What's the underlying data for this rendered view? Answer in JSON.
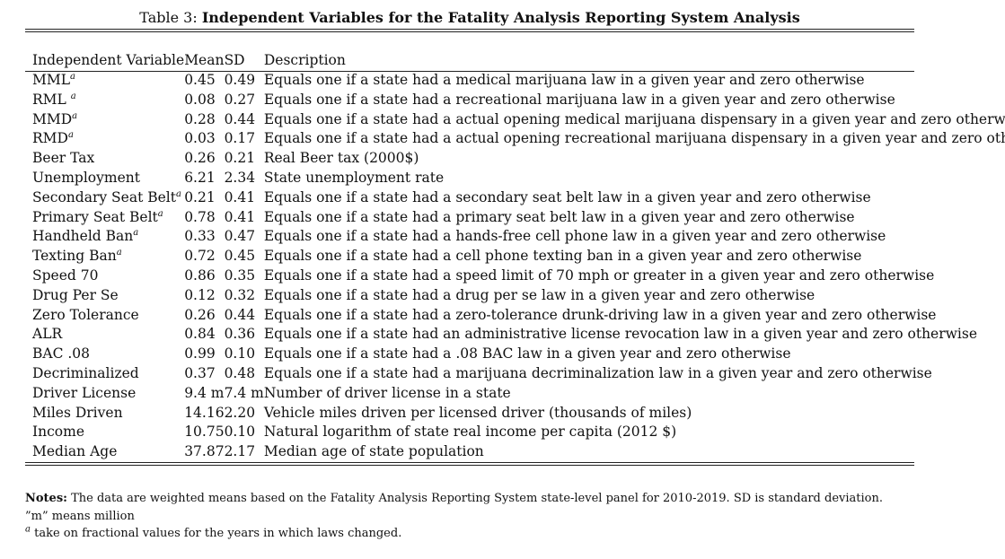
{
  "caption": {
    "label": "Table 3:",
    "title": "Independent Variables for the Fatality Analysis Reporting System Analysis"
  },
  "table": {
    "headers": [
      "Independent Variable",
      "Mean",
      "SD",
      "Description"
    ],
    "rows": [
      {
        "var": "MML",
        "sup": "a",
        "mean": "0.45",
        "sd": "0.49",
        "desc": "Equals one if a state had a medical marijuana law in a given year and zero otherwise"
      },
      {
        "var": "RML ",
        "sup": "a",
        "mean": "0.08",
        "sd": "0.27",
        "desc": "Equals one if a state had a recreational marijuana law in a given year and zero otherwise"
      },
      {
        "var": "MMD",
        "sup": "a",
        "mean": "0.28",
        "sd": "0.44",
        "desc": "Equals one if a state had a actual opening medical marijuana dispensary in a given year and zero otherwise"
      },
      {
        "var": "RMD",
        "sup": "a",
        "mean": "0.03",
        "sd": "0.17",
        "desc": "Equals one if a state had a actual opening recreational marijuana dispensary in a given year and zero otherwise"
      },
      {
        "var": "Beer Tax",
        "sup": "",
        "mean": "0.26",
        "sd": "0.21",
        "desc": "Real Beer tax (2000$)"
      },
      {
        "var": "Unemployment",
        "sup": "",
        "mean": "6.21",
        "sd": "2.34",
        "desc": "State unemployment rate"
      },
      {
        "var": "Secondary Seat Belt",
        "sup": "a",
        "mean": "0.21",
        "sd": "0.41",
        "desc": "Equals one if a state had a secondary seat belt law in a given year and zero otherwise"
      },
      {
        "var": "Primary Seat Belt",
        "sup": "a",
        "mean": "0.78",
        "sd": "0.41",
        "desc": "Equals one if a state had a primary seat belt law in a given year and zero otherwise"
      },
      {
        "var": "Handheld Ban",
        "sup": "a",
        "mean": "0.33",
        "sd": "0.47",
        "desc": "Equals one if a state had a hands-free cell phone law in a given year and zero otherwise"
      },
      {
        "var": "Texting Ban",
        "sup": "a",
        "mean": "0.72",
        "sd": "0.45",
        "desc": "Equals one if a state had a cell phone texting ban in a given year and zero otherwise"
      },
      {
        "var": "Speed 70",
        "sup": "",
        "mean": "0.86",
        "sd": "0.35",
        "desc": "Equals one if a state had a speed limit of 70 mph or greater in a given year and zero otherwise"
      },
      {
        "var": "Drug Per Se",
        "sup": "",
        "mean": "0.12",
        "sd": "0.32",
        "desc": "Equals one if a state had a drug per se law in a given year and zero otherwise"
      },
      {
        "var": "Zero Tolerance",
        "sup": "",
        "mean": "0.26",
        "sd": "0.44",
        "desc": "Equals one if a state had a zero-tolerance drunk-driving law in a given year and zero otherwise"
      },
      {
        "var": "ALR",
        "sup": "",
        "mean": "0.84",
        "sd": "0.36",
        "desc": "Equals one if a state had an administrative license revocation law in a given year and zero otherwise"
      },
      {
        "var": "BAC .08",
        "sup": "",
        "mean": "0.99",
        "sd": "0.10",
        "desc": "Equals one if a state had a .08 BAC law in a given year and zero otherwise"
      },
      {
        "var": "Decriminalized",
        "sup": "",
        "mean": "0.37",
        "sd": "0.48",
        "desc": "Equals one if a state had a marijuana decriminalization law in a given year and zero otherwise"
      },
      {
        "var": "Driver License",
        "sup": "",
        "mean": "9.4 m",
        "sd": "7.4 m",
        "desc": "Number of driver license in a state"
      },
      {
        "var": "Miles Driven",
        "sup": "",
        "mean": "14.16",
        "sd": "2.20",
        "desc": "Vehicle miles driven per licensed driver (thousands of miles)"
      },
      {
        "var": "Income",
        "sup": "",
        "mean": "10.75",
        "sd": "0.10",
        "desc": "Natural logarithm of state real income per capita (2012 $)"
      },
      {
        "var": "Median Age",
        "sup": "",
        "mean": "37.87",
        "sd": "2.17",
        "desc": "Median age of state population"
      }
    ]
  },
  "notes": {
    "label": "Notes:",
    "line1": "The data are weighted means based on the Fatality Analysis Reporting System state-level panel for 2010-2019. SD is standard deviation.",
    "line2": "”m” means million",
    "line3_sup": "a",
    "line3": "take on fractional values for the years in which laws changed."
  }
}
